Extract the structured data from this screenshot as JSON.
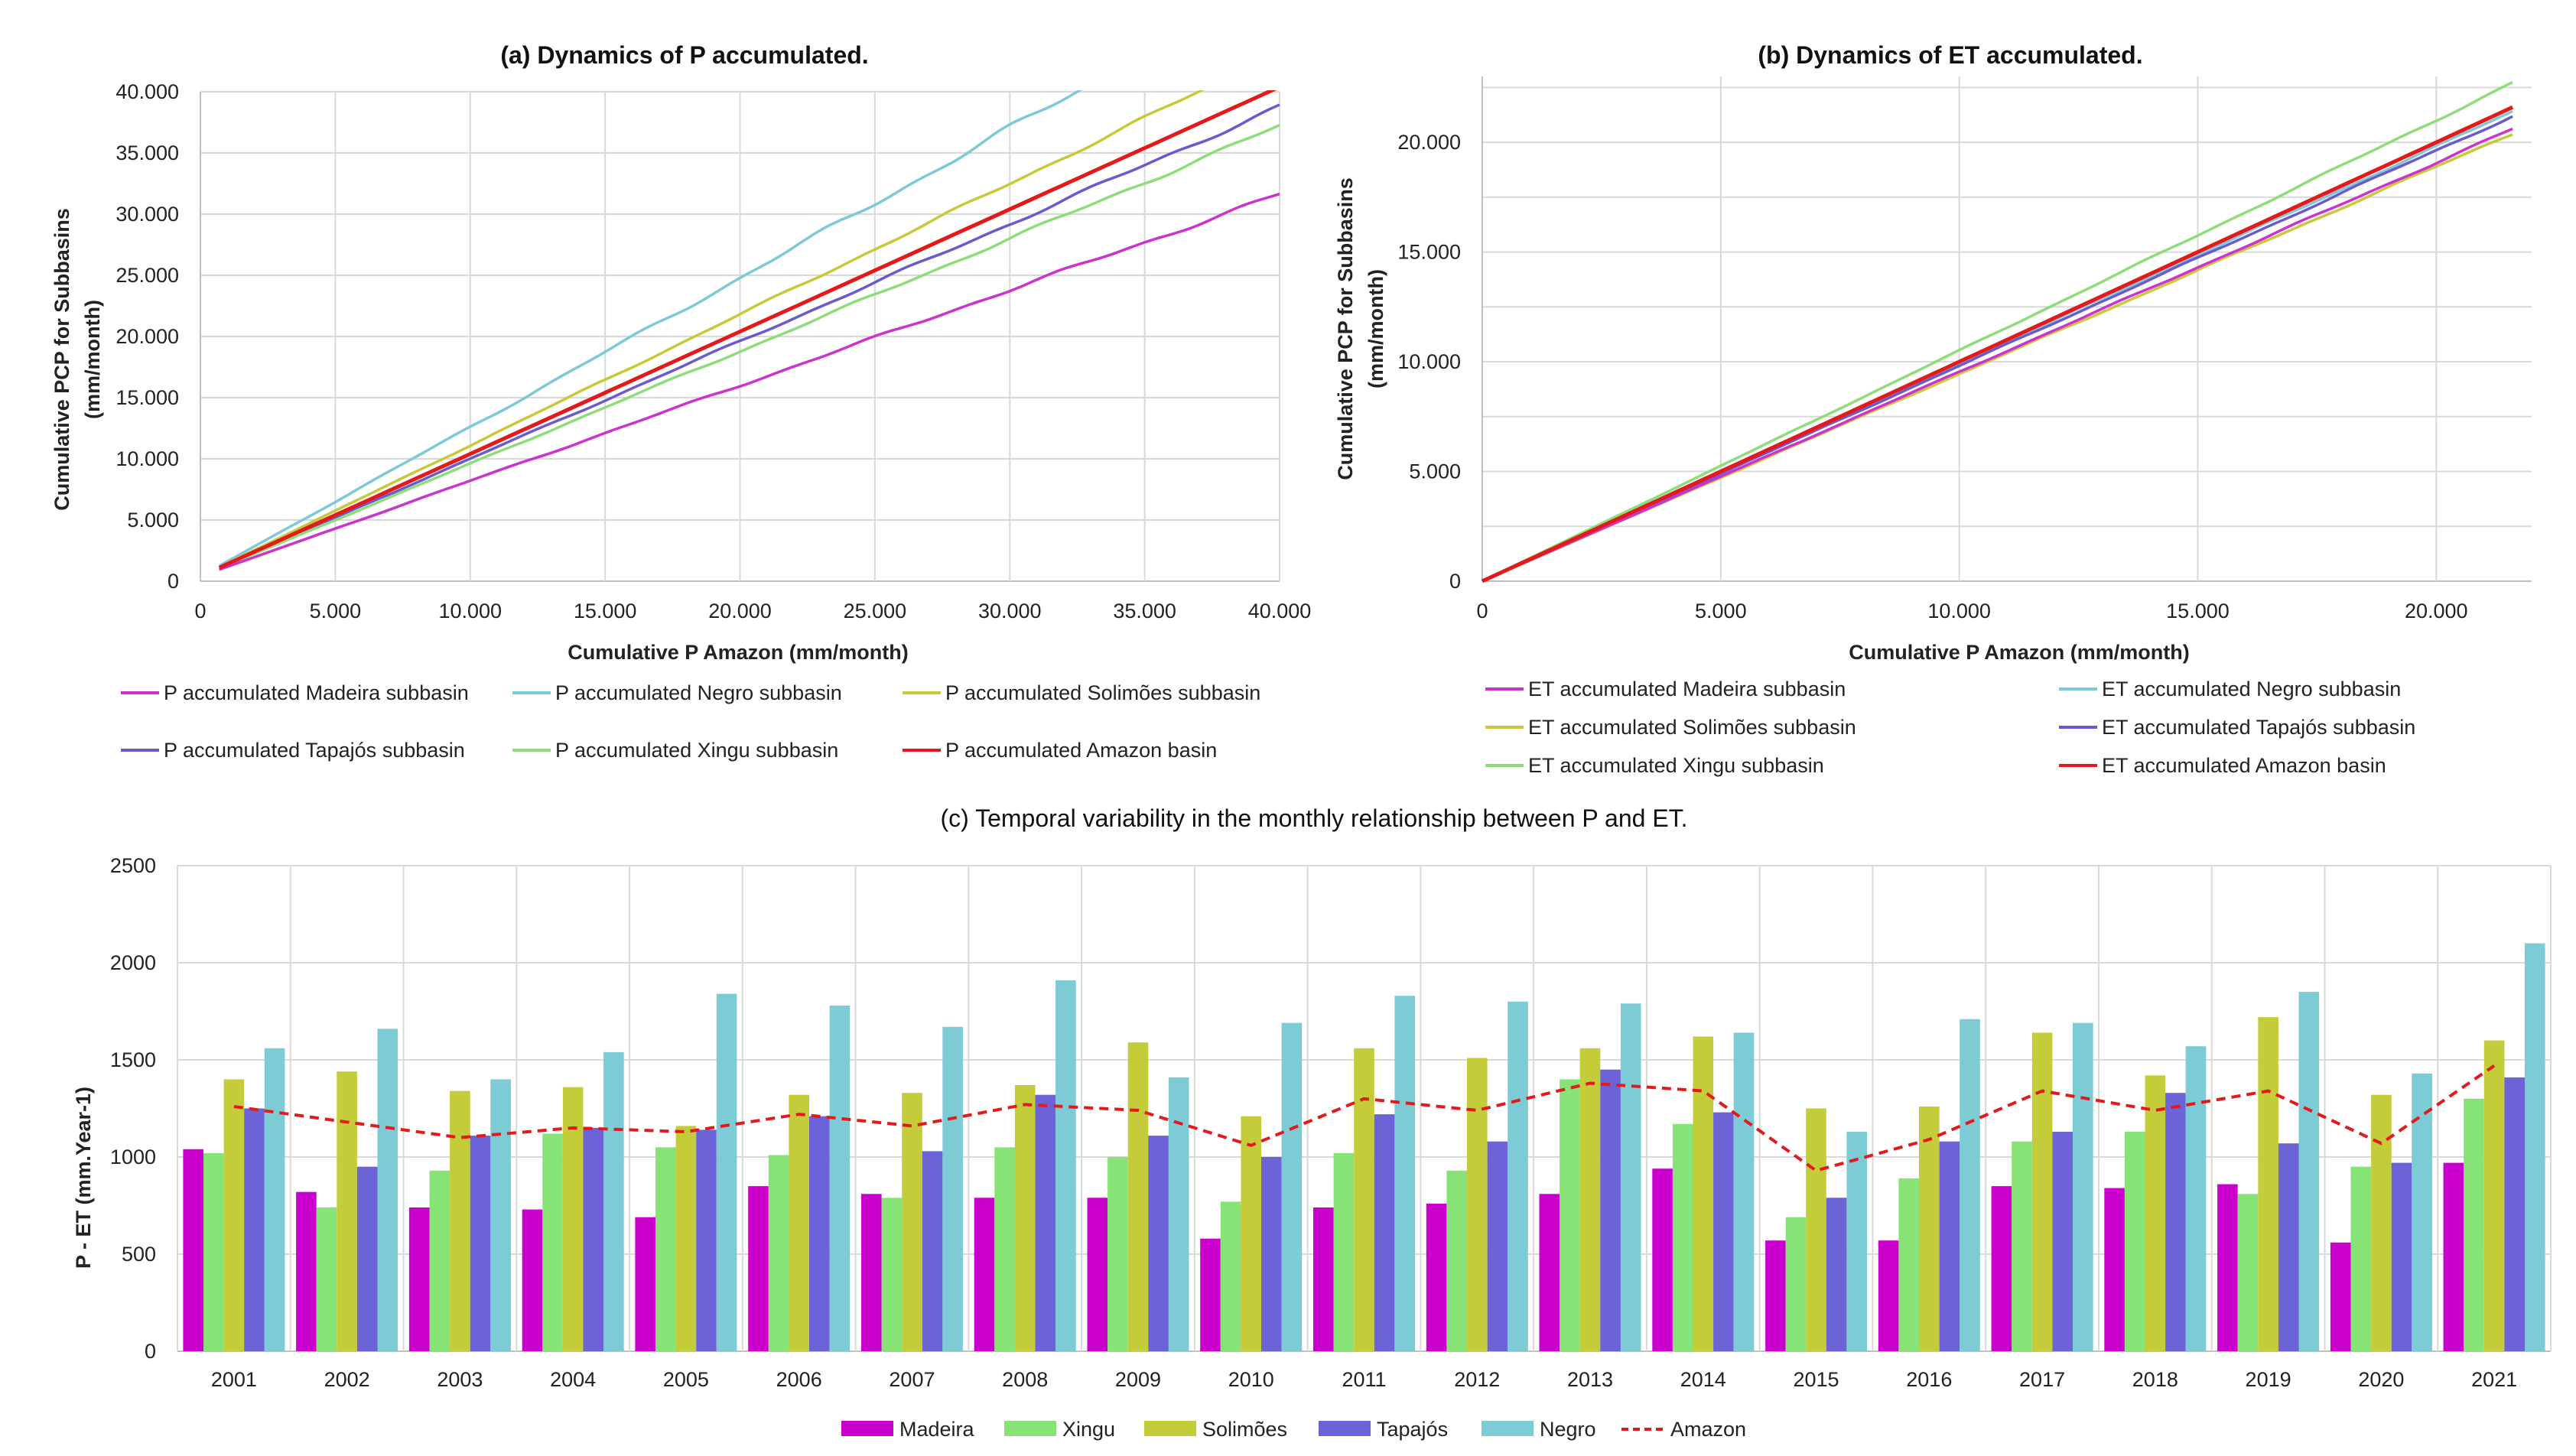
{
  "chart_data": [
    {
      "type": "line",
      "title": "(a) Dynamics of P accumulated.",
      "xlabel": "Cumulative P Amazon (mm/month)",
      "ylabel": "Cumulative PCP for Subbasins (mm/month)",
      "ylabel_lines": [
        "Cumulative PCP for Subbasins",
        "(mm/month)"
      ],
      "xlim": [
        0,
        40000
      ],
      "ylim": [
        0,
        40000
      ],
      "xticks": [
        "0",
        "5.000",
        "10.000",
        "15.000",
        "20.000",
        "25.000",
        "30.000",
        "35.000",
        "40.000"
      ],
      "yticks": [
        "0",
        "5.000",
        "10.000",
        "15.000",
        "20.000",
        "25.000",
        "30.000",
        "35.000",
        "40.000"
      ],
      "grid": true,
      "legend": "bottom",
      "series": [
        {
          "name": "P accumulated Madeira subbasin",
          "color": "#cc33cc",
          "slope": 0.78
        },
        {
          "name": "P accumulated Negro subbasin",
          "color": "#7ec8d8",
          "slope": 1.22
        },
        {
          "name": "P accumulated Solimões subbasin",
          "color": "#c9c83a",
          "slope": 1.07
        },
        {
          "name": "P accumulated Tapajós subbasin",
          "color": "#6a5acd",
          "slope": 0.96
        },
        {
          "name": "P accumulated Xingu subbasin",
          "color": "#8fdc7a",
          "slope": 0.92
        },
        {
          "name": "P accumulated Amazon basin",
          "color": "#e31a1c",
          "slope": 1.0
        }
      ]
    },
    {
      "type": "line",
      "title": "(b) Dynamics of ET accumulated.",
      "xlabel": "Cumulative P Amazon (mm/month)",
      "ylabel": "Cumulative PCP for Subbasins (mm/month)",
      "ylabel_lines": [
        "Cumulative PCP for Subbasins",
        "(mm/month)"
      ],
      "xlim": [
        0,
        22000
      ],
      "ylim": [
        0,
        23000
      ],
      "xticks": [
        "0",
        "5.000",
        "10.000",
        "15.000",
        "20.000"
      ],
      "yticks": [
        "0",
        "5.000",
        "10.000",
        "15.000",
        "20.000"
      ],
      "grid": true,
      "legend": "bottom",
      "series": [
        {
          "name": "ET accumulated Madeira subbasin",
          "color": "#cc33cc",
          "end": 20600
        },
        {
          "name": "ET accumulated Negro subbasin",
          "color": "#7ec8d8",
          "end": 21400
        },
        {
          "name": "ET accumulated Solimões subbasin",
          "color": "#c9c83a",
          "end": 20400
        },
        {
          "name": "ET accumulated Tapajós subbasin",
          "color": "#6a5acd",
          "end": 21200
        },
        {
          "name": "ET accumulated Xingu subbasin",
          "color": "#8fdc7a",
          "end": 22700
        },
        {
          "name": "ET accumulated Amazon basin",
          "color": "#e31a1c",
          "end": 21600
        }
      ]
    },
    {
      "type": "bar",
      "title": "(c) Temporal variability in the monthly relationship between P and ET.",
      "xlabel": "",
      "ylabel": "P - ET (mm.Year-1)",
      "ylim": [
        0,
        2500
      ],
      "yticks": [
        "0",
        "500",
        "1000",
        "1500",
        "2000",
        "2500"
      ],
      "grid": true,
      "legend": "bottom",
      "categories": [
        "2001",
        "2002",
        "2003",
        "2004",
        "2005",
        "2006",
        "2007",
        "2008",
        "2009",
        "2010",
        "2011",
        "2012",
        "2013",
        "2014",
        "2015",
        "2016",
        "2017",
        "2018",
        "2019",
        "2020",
        "2021"
      ],
      "series": [
        {
          "name": "Madeira",
          "color": "#cc00cc",
          "values": [
            1040,
            820,
            740,
            730,
            690,
            850,
            810,
            790,
            790,
            580,
            740,
            760,
            810,
            940,
            570,
            570,
            850,
            840,
            860,
            560,
            970
          ]
        },
        {
          "name": "Xingu",
          "color": "#88e377",
          "values": [
            1020,
            740,
            930,
            1120,
            1050,
            1010,
            790,
            1050,
            1000,
            770,
            1020,
            930,
            1400,
            1170,
            690,
            890,
            1080,
            1130,
            810,
            950,
            1300
          ]
        },
        {
          "name": "Solimões",
          "color": "#c5cc3a",
          "values": [
            1400,
            1440,
            1340,
            1360,
            1160,
            1320,
            1330,
            1370,
            1590,
            1210,
            1560,
            1510,
            1560,
            1620,
            1250,
            1260,
            1640,
            1420,
            1720,
            1320,
            1600
          ]
        },
        {
          "name": "Tapajós",
          "color": "#6b63d6",
          "values": [
            1250,
            950,
            1110,
            1150,
            1140,
            1210,
            1030,
            1320,
            1110,
            1000,
            1220,
            1080,
            1450,
            1230,
            790,
            1080,
            1130,
            1330,
            1070,
            970,
            1410
          ]
        },
        {
          "name": "Negro",
          "color": "#7dcbd5",
          "values": [
            1560,
            1660,
            1400,
            1540,
            1840,
            1780,
            1670,
            1910,
            1410,
            1690,
            1830,
            1800,
            1790,
            1640,
            1130,
            1710,
            1690,
            1570,
            1850,
            1430,
            2100
          ]
        },
        {
          "name": "Amazon",
          "color": "#e31a1c",
          "kind": "line-dashed",
          "values": [
            1260,
            1180,
            1100,
            1150,
            1130,
            1220,
            1160,
            1270,
            1240,
            1060,
            1300,
            1240,
            1380,
            1340,
            930,
            1090,
            1340,
            1240,
            1340,
            1070,
            1470
          ]
        }
      ]
    }
  ]
}
